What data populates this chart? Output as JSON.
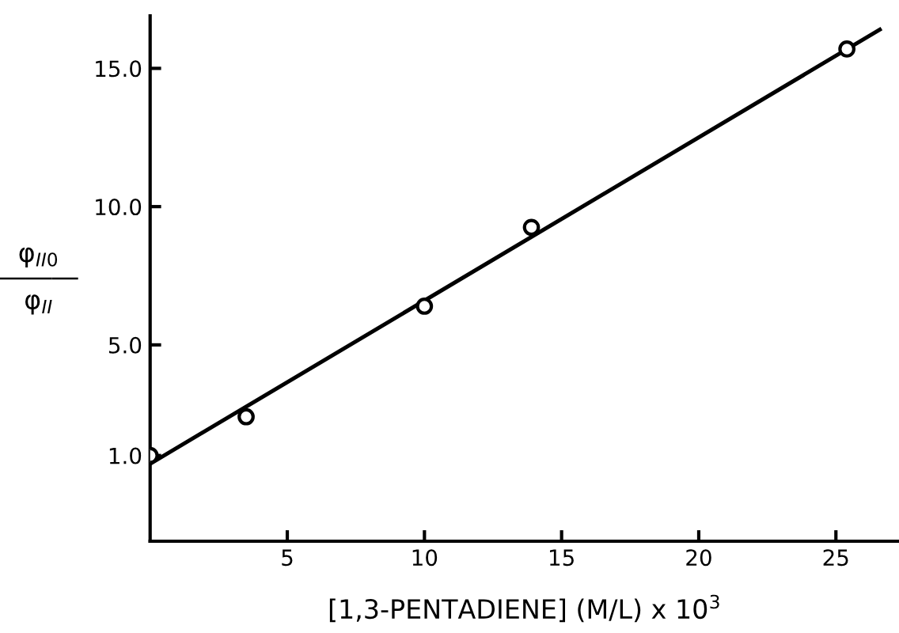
{
  "chart_data": {
    "type": "scatter",
    "xlabel": "[1,3-PENTADIENE] (M/L) x 10$^{3}$",
    "ylabel": "φ$_{II0}$\n―――\nφ$_{II}$",
    "xlim": [
      0,
      27.3
    ],
    "ylim": [
      -2.1,
      16.9
    ],
    "xticks": [
      5,
      10,
      15,
      20,
      25
    ],
    "yticks": [
      {
        "value": 1,
        "label": "1.0"
      },
      {
        "value": 5,
        "label": "5.0"
      },
      {
        "value": 10,
        "label": "10.0"
      },
      {
        "value": 15,
        "label": "15.0"
      }
    ],
    "grid": false,
    "series": [
      {
        "color": "#000000",
        "marker": "circle",
        "x": [
          0,
          3.5,
          10.0,
          13.9,
          25.4
        ],
        "values": [
          1.0,
          2.4,
          6.4,
          9.25,
          15.7
        ]
      },
      {
        "type": "line",
        "color": "#000000",
        "marker": "none",
        "x": [
          0,
          26.6
        ],
        "values": [
          0.7,
          16.4
        ]
      }
    ]
  }
}
